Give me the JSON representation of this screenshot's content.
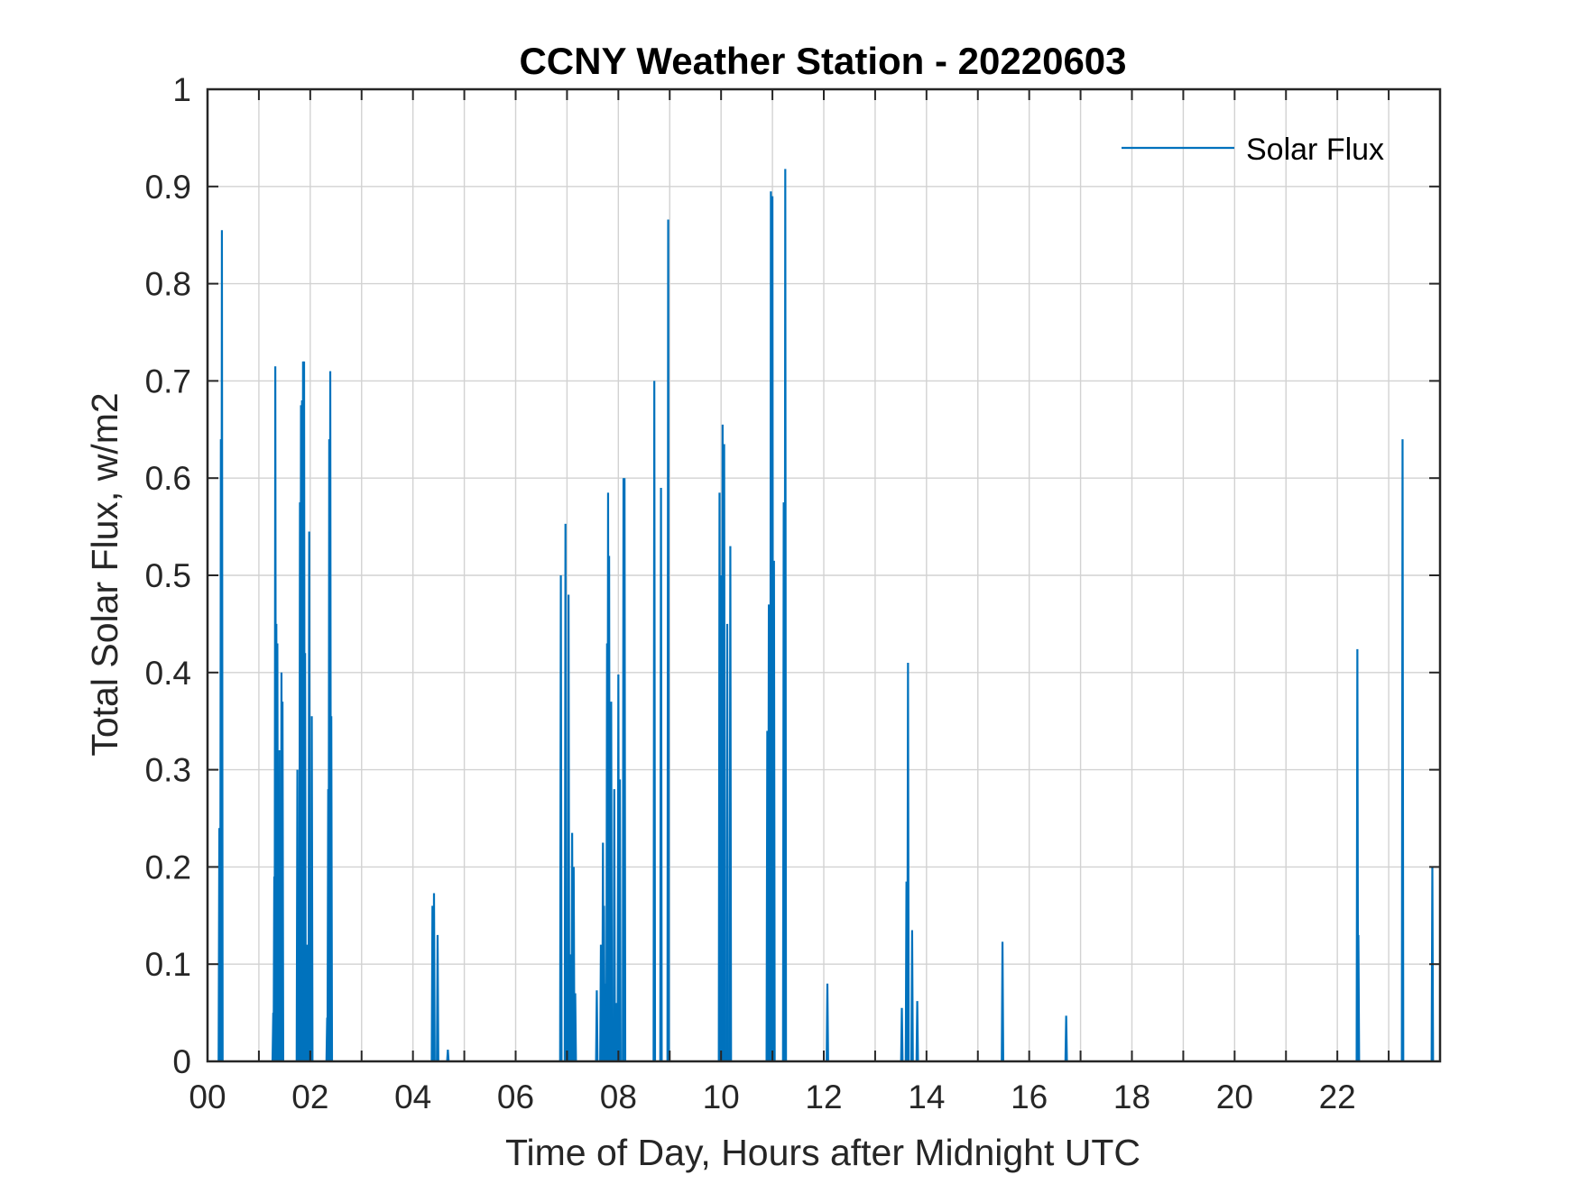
{
  "chart_data": {
    "type": "line",
    "title": "CCNY Weather Station - 20220603",
    "xlabel": "Time of Day, Hours after Midnight UTC",
    "ylabel": "Total Solar Flux, w/m2",
    "xlim": [
      0,
      24
    ],
    "ylim": [
      0,
      1
    ],
    "x_ticks": [
      0,
      2,
      4,
      6,
      8,
      10,
      12,
      14,
      16,
      18,
      20,
      22
    ],
    "x_tick_labels": [
      "00",
      "02",
      "04",
      "06",
      "08",
      "10",
      "12",
      "14",
      "16",
      "18",
      "20",
      "22"
    ],
    "y_ticks": [
      0,
      0.1,
      0.2,
      0.3,
      0.4,
      0.5,
      0.6,
      0.7,
      0.8,
      0.9,
      1
    ],
    "y_tick_labels": [
      "0",
      "0.1",
      "0.2",
      "0.3",
      "0.4",
      "0.5",
      "0.6",
      "0.7",
      "0.8",
      "0.9",
      "1"
    ],
    "grid": true,
    "legend_position": "top-right",
    "series": [
      {
        "name": "Solar Flux",
        "color": "#0072BD",
        "spikes": [
          {
            "x": 0.23,
            "y": 0.24
          },
          {
            "x": 0.26,
            "y": 0.64
          },
          {
            "x": 0.28,
            "y": 0.855
          },
          {
            "x": 1.28,
            "y": 0.05
          },
          {
            "x": 1.3,
            "y": 0.19
          },
          {
            "x": 1.32,
            "y": 0.715
          },
          {
            "x": 1.34,
            "y": 0.45
          },
          {
            "x": 1.36,
            "y": 0.43
          },
          {
            "x": 1.38,
            "y": 0.06
          },
          {
            "x": 1.4,
            "y": 0.32
          },
          {
            "x": 1.42,
            "y": 0.24
          },
          {
            "x": 1.44,
            "y": 0.4
          },
          {
            "x": 1.46,
            "y": 0.37
          },
          {
            "x": 1.75,
            "y": 0.3
          },
          {
            "x": 1.78,
            "y": 0.16
          },
          {
            "x": 1.8,
            "y": 0.575
          },
          {
            "x": 1.82,
            "y": 0.675
          },
          {
            "x": 1.84,
            "y": 0.68
          },
          {
            "x": 1.86,
            "y": 0.72
          },
          {
            "x": 1.88,
            "y": 0.72
          },
          {
            "x": 1.9,
            "y": 0.42
          },
          {
            "x": 1.94,
            "y": 0.12
          },
          {
            "x": 1.98,
            "y": 0.545
          },
          {
            "x": 2.03,
            "y": 0.355
          },
          {
            "x": 2.33,
            "y": 0.045
          },
          {
            "x": 2.35,
            "y": 0.28
          },
          {
            "x": 2.37,
            "y": 0.64
          },
          {
            "x": 2.39,
            "y": 0.71
          },
          {
            "x": 2.41,
            "y": 0.355
          },
          {
            "x": 4.38,
            "y": 0.16
          },
          {
            "x": 4.41,
            "y": 0.173
          },
          {
            "x": 4.48,
            "y": 0.13
          },
          {
            "x": 4.68,
            "y": 0.012
          },
          {
            "x": 6.88,
            "y": 0.5
          },
          {
            "x": 6.97,
            "y": 0.553
          },
          {
            "x": 7.03,
            "y": 0.48
          },
          {
            "x": 7.06,
            "y": 0.11
          },
          {
            "x": 7.1,
            "y": 0.235
          },
          {
            "x": 7.13,
            "y": 0.2
          },
          {
            "x": 7.16,
            "y": 0.07
          },
          {
            "x": 7.58,
            "y": 0.073
          },
          {
            "x": 7.66,
            "y": 0.12
          },
          {
            "x": 7.7,
            "y": 0.225
          },
          {
            "x": 7.72,
            "y": 0.16
          },
          {
            "x": 7.75,
            "y": 0.08
          },
          {
            "x": 7.78,
            "y": 0.43
          },
          {
            "x": 7.8,
            "y": 0.585
          },
          {
            "x": 7.82,
            "y": 0.52
          },
          {
            "x": 7.86,
            "y": 0.37
          },
          {
            "x": 7.92,
            "y": 0.28
          },
          {
            "x": 7.97,
            "y": 0.06
          },
          {
            "x": 8.0,
            "y": 0.398
          },
          {
            "x": 8.03,
            "y": 0.29
          },
          {
            "x": 8.1,
            "y": 0.6
          },
          {
            "x": 8.12,
            "y": 0.6
          },
          {
            "x": 8.7,
            "y": 0.7
          },
          {
            "x": 8.83,
            "y": 0.59
          },
          {
            "x": 8.97,
            "y": 0.866
          },
          {
            "x": 9.97,
            "y": 0.585
          },
          {
            "x": 10.0,
            "y": 0.5
          },
          {
            "x": 10.03,
            "y": 0.655
          },
          {
            "x": 10.06,
            "y": 0.635
          },
          {
            "x": 10.12,
            "y": 0.45
          },
          {
            "x": 10.18,
            "y": 0.53
          },
          {
            "x": 10.9,
            "y": 0.34
          },
          {
            "x": 10.93,
            "y": 0.47
          },
          {
            "x": 10.97,
            "y": 0.895
          },
          {
            "x": 11.0,
            "y": 0.89
          },
          {
            "x": 11.03,
            "y": 0.515
          },
          {
            "x": 11.22,
            "y": 0.575
          },
          {
            "x": 11.25,
            "y": 0.918
          },
          {
            "x": 12.07,
            "y": 0.08
          },
          {
            "x": 13.52,
            "y": 0.055
          },
          {
            "x": 13.61,
            "y": 0.185
          },
          {
            "x": 13.64,
            "y": 0.41
          },
          {
            "x": 13.72,
            "y": 0.135
          },
          {
            "x": 13.82,
            "y": 0.062
          },
          {
            "x": 15.48,
            "y": 0.123
          },
          {
            "x": 16.72,
            "y": 0.047
          },
          {
            "x": 22.39,
            "y": 0.424
          },
          {
            "x": 22.41,
            "y": 0.13
          },
          {
            "x": 23.27,
            "y": 0.64
          },
          {
            "x": 23.85,
            "y": 0.2
          }
        ]
      }
    ]
  }
}
